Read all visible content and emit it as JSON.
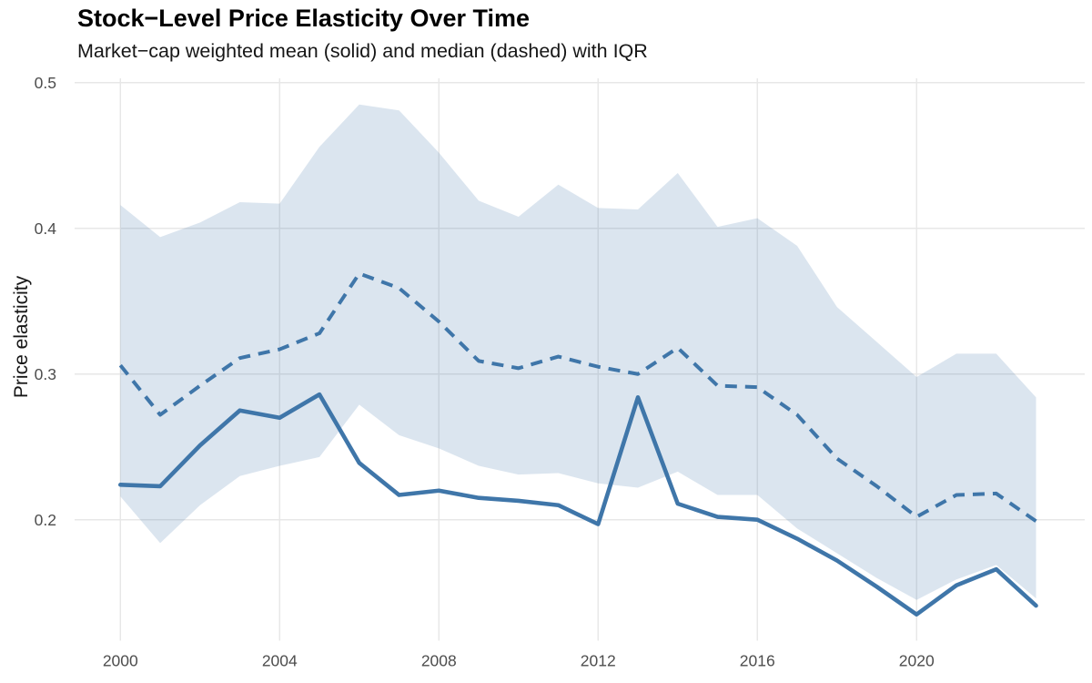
{
  "chart_data": {
    "type": "line",
    "title": "Stock−Level Price Elasticity Over Time",
    "subtitle": "Market−cap weighted mean (solid) and median (dashed) with IQR",
    "xlabel": "",
    "ylabel": "Price elasticity",
    "x": [
      2000,
      2001,
      2002,
      2003,
      2004,
      2005,
      2006,
      2007,
      2008,
      2009,
      2010,
      2011,
      2012,
      2013,
      2014,
      2015,
      2016,
      2017,
      2018,
      2019,
      2020,
      2021,
      2022,
      2023
    ],
    "series": [
      {
        "name": "Market-cap weighted mean",
        "style": "solid",
        "values": [
          0.224,
          0.223,
          0.251,
          0.275,
          0.27,
          0.286,
          0.239,
          0.217,
          0.22,
          0.215,
          0.213,
          0.21,
          0.197,
          0.284,
          0.211,
          0.202,
          0.2,
          0.187,
          0.172,
          0.154,
          0.135,
          0.155,
          0.166,
          0.141
        ]
      },
      {
        "name": "Median",
        "style": "dashed",
        "values": [
          0.306,
          0.272,
          0.292,
          0.311,
          0.317,
          0.328,
          0.369,
          0.359,
          0.336,
          0.309,
          0.304,
          0.312,
          0.305,
          0.3,
          0.318,
          0.292,
          0.291,
          0.272,
          0.242,
          0.223,
          0.202,
          0.217,
          0.218,
          0.199
        ]
      }
    ],
    "band": {
      "name": "IQR",
      "lower": [
        0.216,
        0.184,
        0.21,
        0.23,
        0.237,
        0.243,
        0.279,
        0.258,
        0.249,
        0.237,
        0.231,
        0.232,
        0.225,
        0.222,
        0.233,
        0.217,
        0.217,
        0.194,
        0.177,
        0.16,
        0.145,
        0.159,
        0.169,
        0.146
      ],
      "upper": [
        0.416,
        0.394,
        0.404,
        0.418,
        0.417,
        0.456,
        0.485,
        0.481,
        0.452,
        0.419,
        0.408,
        0.43,
        0.414,
        0.413,
        0.438,
        0.401,
        0.407,
        0.388,
        0.346,
        0.322,
        0.298,
        0.314,
        0.314,
        0.284
      ]
    },
    "x_ticks": [
      2000,
      2004,
      2008,
      2012,
      2016,
      2020
    ],
    "y_ticks": [
      0.2,
      0.3,
      0.4,
      0.5
    ],
    "xlim": [
      2000,
      2023
    ],
    "ylim": [
      0.117,
      0.503
    ],
    "grid": "major",
    "legend": "none",
    "colors": {
      "line": "#3F76A9",
      "band_fill": "#3F76A9",
      "band_opacity": 0.19,
      "grid": "#E7E7E7",
      "tick_text": "#4D4D4D",
      "title_text": "#000000"
    }
  }
}
